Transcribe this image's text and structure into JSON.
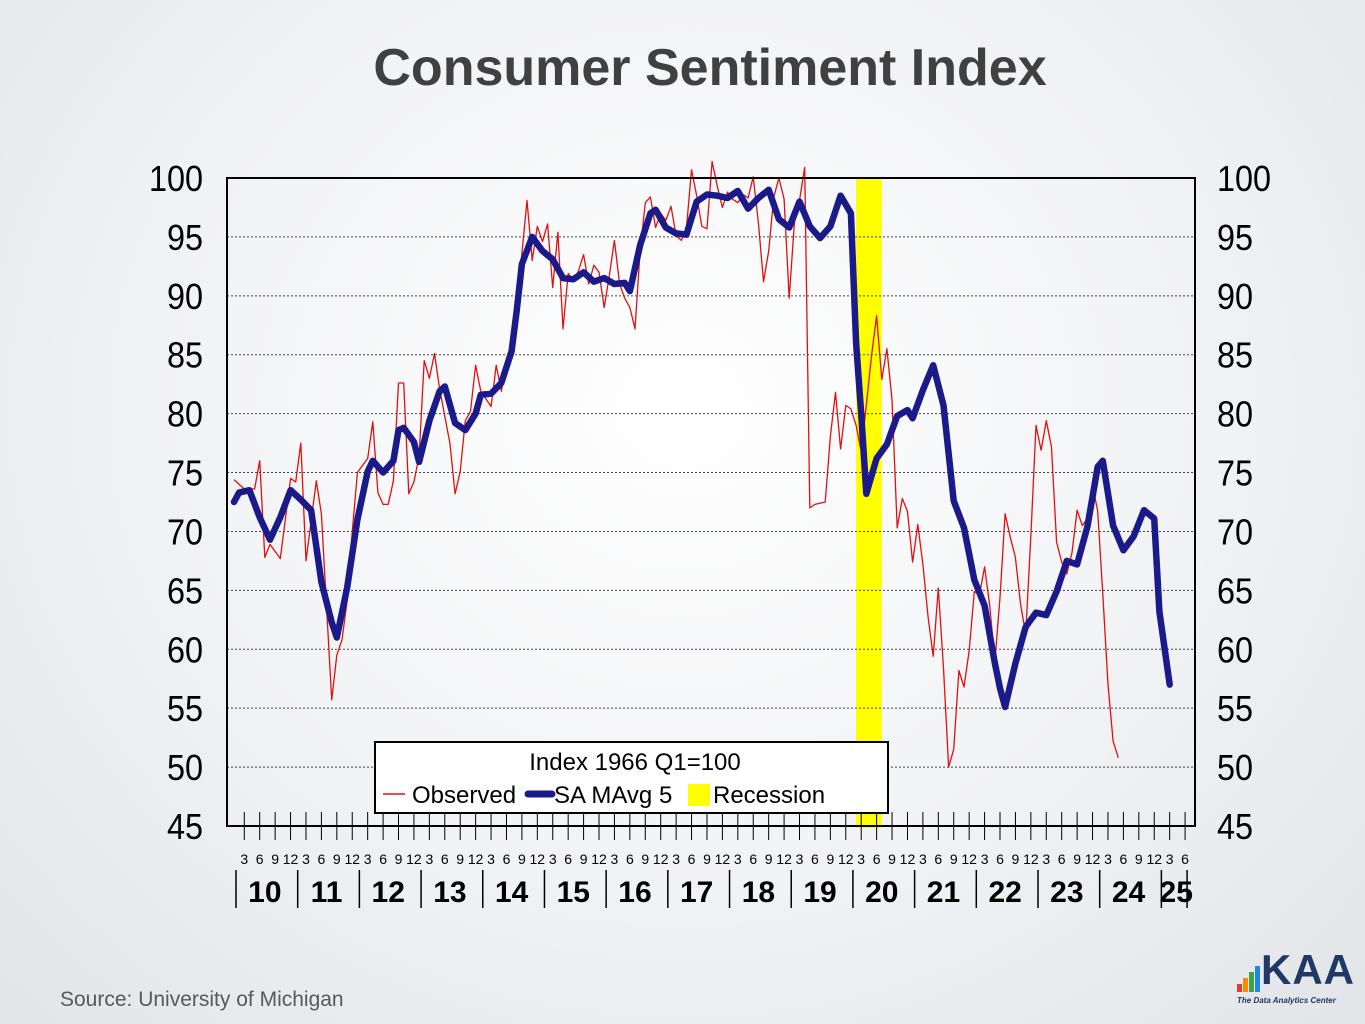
{
  "title": "Consumer Sentiment Index",
  "source": "Source:  University of Michigan",
  "logo": {
    "text": "KAA",
    "tagline": "The Data Analytics Center"
  },
  "colors": {
    "observed": "#e01010",
    "ma": "#1a1a8a",
    "recession": "#ffff00",
    "grid": "#444444"
  },
  "chart_data": {
    "type": "line",
    "title": "Consumer Sentiment Index",
    "ylim": [
      45,
      100
    ],
    "y_ticks": [
      100,
      95,
      90,
      85,
      80,
      75,
      70,
      65,
      60,
      55,
      50,
      45
    ],
    "y_tick_labels": [
      "100",
      "95",
      "90",
      "85",
      "80",
      "75",
      "70",
      "65",
      "60",
      "55",
      "50",
      "45"
    ],
    "month_ticks": [
      "3",
      "6",
      "9",
      "12"
    ],
    "last_month_ticks": [
      "3",
      "6"
    ],
    "year_labels": [
      "10",
      "11",
      "12",
      "13",
      "14",
      "15",
      "16",
      "17",
      "18",
      "19",
      "20",
      "21",
      "22",
      "23",
      "24",
      "25"
    ],
    "legend": {
      "title": "Index 1966 Q1=100",
      "entries": [
        "Observed",
        "SA MAvg 5",
        "Recession"
      ]
    },
    "recession": {
      "start": "2020-02",
      "end": "2020-07"
    },
    "series": [
      {
        "name": "Observed",
        "style": "thin",
        "points": [
          [
            "2010-01",
            74.4
          ],
          [
            "2010-03",
            73.6
          ],
          [
            "2010-05",
            73.6
          ],
          [
            "2010-06",
            76.0
          ],
          [
            "2010-07",
            67.8
          ],
          [
            "2010-08",
            68.9
          ],
          [
            "2010-10",
            67.7
          ],
          [
            "2010-12",
            74.5
          ],
          [
            "2011-01",
            74.2
          ],
          [
            "2011-02",
            77.5
          ],
          [
            "2011-03",
            67.5
          ],
          [
            "2011-05",
            74.3
          ],
          [
            "2011-06",
            71.5
          ],
          [
            "2011-08",
            55.7
          ],
          [
            "2011-09",
            59.5
          ],
          [
            "2011-10",
            60.8
          ],
          [
            "2011-11",
            64.1
          ],
          [
            "2011-12",
            69.9
          ],
          [
            "2012-01",
            75.0
          ],
          [
            "2012-03",
            76.2
          ],
          [
            "2012-04",
            79.3
          ],
          [
            "2012-05",
            73.3
          ],
          [
            "2012-06",
            72.3
          ],
          [
            "2012-07",
            72.3
          ],
          [
            "2012-08",
            74.3
          ],
          [
            "2012-09",
            82.6
          ],
          [
            "2012-10",
            82.6
          ],
          [
            "2012-11",
            73.2
          ],
          [
            "2012-12",
            74.2
          ],
          [
            "2013-01",
            76.4
          ],
          [
            "2013-02",
            84.5
          ],
          [
            "2013-03",
            83.0
          ],
          [
            "2013-04",
            85.1
          ],
          [
            "2013-05",
            82.1
          ],
          [
            "2013-07",
            77.5
          ],
          [
            "2013-08",
            73.2
          ],
          [
            "2013-09",
            75.1
          ],
          [
            "2013-10",
            79.4
          ],
          [
            "2013-11",
            80.2
          ],
          [
            "2013-12",
            84.1
          ],
          [
            "2014-01",
            81.9
          ],
          [
            "2014-03",
            80.6
          ],
          [
            "2014-04",
            84.1
          ],
          [
            "2014-05",
            81.9
          ],
          [
            "2014-06",
            84.1
          ],
          [
            "2014-08",
            88.5
          ],
          [
            "2014-09",
            93.6
          ],
          [
            "2014-10",
            98.1
          ],
          [
            "2014-11",
            93.0
          ],
          [
            "2014-12",
            95.9
          ],
          [
            "2015-01",
            94.6
          ],
          [
            "2015-02",
            96.1
          ],
          [
            "2015-03",
            90.7
          ],
          [
            "2015-04",
            95.4
          ],
          [
            "2015-05",
            87.2
          ],
          [
            "2015-06",
            91.9
          ],
          [
            "2015-07",
            91.3
          ],
          [
            "2015-08",
            92.1
          ],
          [
            "2015-09",
            93.5
          ],
          [
            "2015-10",
            91.0
          ],
          [
            "2015-11",
            92.6
          ],
          [
            "2015-12",
            92.0
          ],
          [
            "2016-01",
            89.0
          ],
          [
            "2016-02",
            91.7
          ],
          [
            "2016-03",
            94.7
          ],
          [
            "2016-04",
            91.0
          ],
          [
            "2016-05",
            89.8
          ],
          [
            "2016-06",
            89.0
          ],
          [
            "2016-07",
            87.2
          ],
          [
            "2016-08",
            93.8
          ],
          [
            "2016-09",
            97.9
          ],
          [
            "2016-10",
            98.4
          ],
          [
            "2016-11",
            95.8
          ],
          [
            "2016-12",
            97.0
          ],
          [
            "2017-01",
            96.4
          ],
          [
            "2017-02",
            97.6
          ],
          [
            "2017-03",
            95.1
          ],
          [
            "2017-04",
            94.7
          ],
          [
            "2017-05",
            95.7
          ],
          [
            "2017-06",
            100.7
          ],
          [
            "2017-07",
            98.5
          ],
          [
            "2017-08",
            95.9
          ],
          [
            "2017-09",
            95.7
          ],
          [
            "2017-10",
            101.4
          ],
          [
            "2017-11",
            99.3
          ],
          [
            "2017-12",
            97.5
          ],
          [
            "2018-01",
            98.8
          ],
          [
            "2018-02",
            98.2
          ],
          [
            "2018-03",
            97.9
          ],
          [
            "2018-04",
            98.6
          ],
          [
            "2018-05",
            98.3
          ],
          [
            "2018-06",
            100.1
          ],
          [
            "2018-07",
            96.2
          ],
          [
            "2018-08",
            91.2
          ],
          [
            "2018-09",
            93.8
          ],
          [
            "2018-10",
            98.4
          ],
          [
            "2018-11",
            100.0
          ],
          [
            "2018-12",
            98.2
          ],
          [
            "2019-01",
            89.8
          ],
          [
            "2019-02",
            96.2
          ],
          [
            "2019-03",
            98.1
          ],
          [
            "2019-04",
            100.9
          ],
          [
            "2019-05",
            72.0
          ],
          [
            "2019-06",
            72.3
          ],
          [
            "2019-08",
            72.5
          ],
          [
            "2019-09",
            78.1
          ],
          [
            "2019-10",
            81.8
          ],
          [
            "2019-11",
            77.0
          ],
          [
            "2019-12",
            80.7
          ],
          [
            "2020-01",
            80.4
          ],
          [
            "2020-02",
            79.0
          ],
          [
            "2020-03",
            76.8
          ],
          [
            "2020-04",
            80.7
          ],
          [
            "2020-05",
            84.9
          ],
          [
            "2020-06",
            88.3
          ],
          [
            "2020-07",
            82.9
          ],
          [
            "2020-08",
            85.5
          ],
          [
            "2020-09",
            81.2
          ],
          [
            "2020-10",
            70.3
          ],
          [
            "2020-11",
            72.8
          ],
          [
            "2020-12",
            71.7
          ],
          [
            "2021-01",
            67.4
          ],
          [
            "2021-02",
            70.6
          ],
          [
            "2021-03",
            67.2
          ],
          [
            "2021-04",
            62.8
          ],
          [
            "2021-05",
            59.4
          ],
          [
            "2021-06",
            65.2
          ],
          [
            "2021-07",
            58.4
          ],
          [
            "2021-08",
            50.0
          ],
          [
            "2021-09",
            51.5
          ],
          [
            "2021-10",
            58.2
          ],
          [
            "2021-11",
            56.8
          ],
          [
            "2021-12",
            59.9
          ],
          [
            "2022-01",
            64.9
          ],
          [
            "2022-02",
            64.6
          ],
          [
            "2022-03",
            67.0
          ],
          [
            "2022-04",
            63.7
          ],
          [
            "2022-05",
            59.0
          ],
          [
            "2022-06",
            64.4
          ],
          [
            "2022-07",
            71.5
          ],
          [
            "2022-08",
            69.5
          ],
          [
            "2022-09",
            67.8
          ],
          [
            "2022-10",
            63.8
          ],
          [
            "2022-11",
            61.3
          ],
          [
            "2022-12",
            69.7
          ],
          [
            "2023-01",
            79.0
          ],
          [
            "2023-02",
            76.9
          ],
          [
            "2023-03",
            79.4
          ],
          [
            "2023-04",
            77.2
          ],
          [
            "2023-05",
            69.1
          ],
          [
            "2023-06",
            67.4
          ],
          [
            "2023-07",
            66.4
          ],
          [
            "2023-08",
            68.2
          ],
          [
            "2023-09",
            71.8
          ],
          [
            "2023-10",
            70.5
          ],
          [
            "2023-11",
            71.1
          ],
          [
            "2023-12",
            74.0
          ],
          [
            "2024-01",
            71.7
          ],
          [
            "2024-02",
            64.7
          ],
          [
            "2024-03",
            57.0
          ],
          [
            "2024-04",
            52.2
          ],
          [
            "2024-05",
            50.8
          ]
        ]
      },
      {
        "name": "SA MAvg 5",
        "style": "thick",
        "points": [
          [
            "2010-01",
            72.5
          ],
          [
            "2010-02",
            73.3
          ],
          [
            "2010-04",
            73.5
          ],
          [
            "2010-06",
            71.2
          ],
          [
            "2010-08",
            69.3
          ],
          [
            "2010-10",
            71.2
          ],
          [
            "2010-12",
            73.5
          ],
          [
            "2011-02",
            72.7
          ],
          [
            "2011-04",
            71.8
          ],
          [
            "2011-06",
            65.7
          ],
          [
            "2011-08",
            62.3
          ],
          [
            "2011-09",
            61.0
          ],
          [
            "2011-11",
            65.2
          ],
          [
            "2012-01",
            71.0
          ],
          [
            "2012-03",
            75.1
          ],
          [
            "2012-04",
            76.0
          ],
          [
            "2012-06",
            75.0
          ],
          [
            "2012-08",
            76.0
          ],
          [
            "2012-09",
            78.6
          ],
          [
            "2012-10",
            78.8
          ],
          [
            "2012-12",
            77.6
          ],
          [
            "2013-01",
            75.9
          ],
          [
            "2013-03",
            79.4
          ],
          [
            "2013-05",
            81.9
          ],
          [
            "2013-06",
            82.3
          ],
          [
            "2013-08",
            79.2
          ],
          [
            "2013-10",
            78.6
          ],
          [
            "2013-12",
            80.0
          ],
          [
            "2014-01",
            81.6
          ],
          [
            "2014-03",
            81.7
          ],
          [
            "2014-05",
            82.6
          ],
          [
            "2014-07",
            85.3
          ],
          [
            "2014-08",
            88.8
          ],
          [
            "2014-09",
            92.7
          ],
          [
            "2014-11",
            95.0
          ],
          [
            "2015-01",
            93.8
          ],
          [
            "2015-03",
            93.1
          ],
          [
            "2015-05",
            91.5
          ],
          [
            "2015-07",
            91.4
          ],
          [
            "2015-09",
            92.0
          ],
          [
            "2015-11",
            91.2
          ],
          [
            "2016-01",
            91.5
          ],
          [
            "2016-03",
            91.0
          ],
          [
            "2016-05",
            91.1
          ],
          [
            "2016-06",
            90.4
          ],
          [
            "2016-08",
            94.3
          ],
          [
            "2016-10",
            97.0
          ],
          [
            "2016-11",
            97.3
          ],
          [
            "2017-01",
            95.8
          ],
          [
            "2017-03",
            95.3
          ],
          [
            "2017-05",
            95.2
          ],
          [
            "2017-07",
            98.0
          ],
          [
            "2017-09",
            98.6
          ],
          [
            "2017-11",
            98.5
          ],
          [
            "2018-01",
            98.3
          ],
          [
            "2018-03",
            98.9
          ],
          [
            "2018-05",
            97.4
          ],
          [
            "2018-07",
            98.3
          ],
          [
            "2018-09",
            99.0
          ],
          [
            "2018-11",
            96.5
          ],
          [
            "2019-01",
            95.8
          ],
          [
            "2019-03",
            98.0
          ],
          [
            "2019-05",
            95.9
          ],
          [
            "2019-07",
            94.9
          ],
          [
            "2019-09",
            95.9
          ],
          [
            "2019-11",
            98.5
          ],
          [
            "2020-01",
            97.0
          ],
          [
            "2020-02",
            86.0
          ],
          [
            "2020-03",
            80.0
          ],
          [
            "2020-04",
            73.2
          ],
          [
            "2020-06",
            76.2
          ],
          [
            "2020-08",
            77.4
          ],
          [
            "2020-10",
            79.8
          ],
          [
            "2020-12",
            80.3
          ],
          [
            "2021-01",
            79.6
          ],
          [
            "2021-03",
            82.0
          ],
          [
            "2021-05",
            84.1
          ],
          [
            "2021-07",
            80.7
          ],
          [
            "2021-09",
            72.6
          ],
          [
            "2021-11",
            70.3
          ],
          [
            "2022-01",
            65.9
          ],
          [
            "2022-03",
            63.7
          ],
          [
            "2022-05",
            58.8
          ],
          [
            "2022-06",
            56.7
          ],
          [
            "2022-07",
            55.1
          ],
          [
            "2022-09",
            58.8
          ],
          [
            "2022-11",
            61.9
          ],
          [
            "2023-01",
            63.1
          ],
          [
            "2023-03",
            62.9
          ],
          [
            "2023-05",
            64.9
          ],
          [
            "2023-07",
            67.5
          ],
          [
            "2023-09",
            67.2
          ],
          [
            "2023-11",
            70.4
          ],
          [
            "2024-01",
            75.5
          ],
          [
            "2024-02",
            76.0
          ],
          [
            "2024-04",
            70.5
          ],
          [
            "2024-06",
            68.4
          ],
          [
            "2024-08",
            69.6
          ],
          [
            "2024-10",
            71.8
          ],
          [
            "2024-12",
            71.1
          ],
          [
            "2025-01",
            63.2
          ],
          [
            "2025-03",
            57.0
          ]
        ]
      }
    ]
  }
}
